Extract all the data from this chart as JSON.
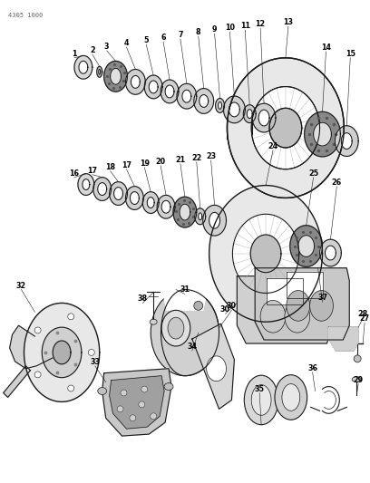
{
  "ref_code": "4305 1000",
  "bg_color": "#ffffff",
  "line_color": "#1a1a1a",
  "fig_width": 4.08,
  "fig_height": 5.33,
  "dpi": 100
}
